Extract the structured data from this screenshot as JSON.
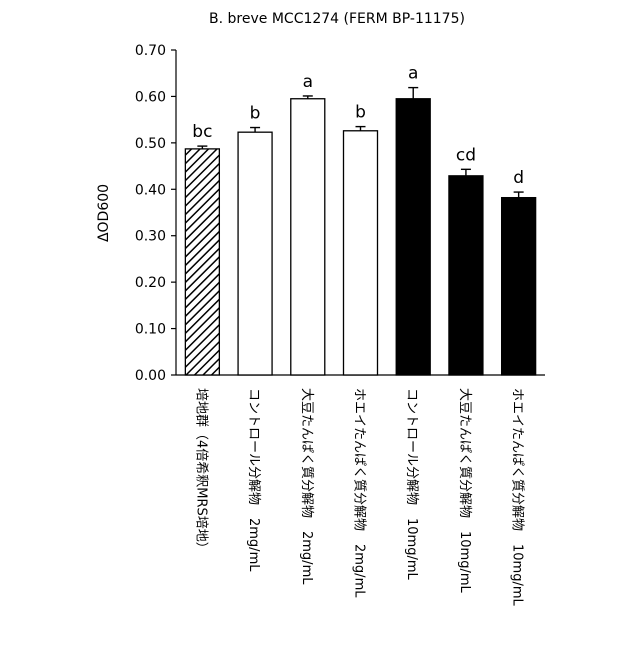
{
  "chart_data": {
    "type": "bar",
    "title": "B. breve MCC1274 (FERM BP-11175)",
    "ylabel": "ΔOD600",
    "xlabel": "",
    "ylim": [
      0,
      0.7
    ],
    "yticks": [
      "0.00",
      "0.10",
      "0.20",
      "0.30",
      "0.40",
      "0.50",
      "0.60",
      "0.70"
    ],
    "categories": [
      "培地群（4倍希釈MRS培地）",
      "コントロール分解物　2mg/mL",
      "大豆たんぱく質分解物　2mg/mL",
      "ホエイたんぱく質分解物　2mg/mL",
      "コントロール分解物　10mg/mL",
      "大豆たんぱく質分解物　10mg/mL",
      "ホエイたんぱく質分解物　10mg/mL"
    ],
    "values": [
      0.487,
      0.523,
      0.595,
      0.526,
      0.595,
      0.429,
      0.382
    ],
    "errors": [
      0.006,
      0.01,
      0.006,
      0.009,
      0.024,
      0.014,
      0.012
    ],
    "significance": [
      "bc",
      "b",
      "a",
      "b",
      "a",
      "cd",
      "d"
    ],
    "fills": [
      "hatched",
      "white",
      "white",
      "white",
      "black",
      "black",
      "black"
    ],
    "grid": false,
    "legend": "none"
  }
}
